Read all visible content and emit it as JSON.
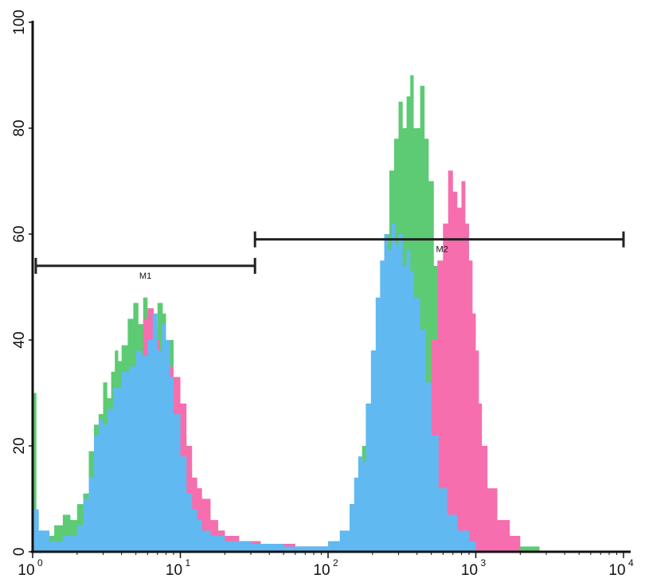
{
  "chart_data": {
    "type": "area",
    "title": "",
    "xlabel": "",
    "ylabel": "",
    "xscale": "log",
    "xlim": [
      1,
      10000
    ],
    "ylim": [
      0,
      100
    ],
    "grid": false,
    "x_ticks": [
      {
        "base": "10",
        "exp": "0"
      },
      {
        "base": "10",
        "exp": "1"
      },
      {
        "base": "10",
        "exp": "2"
      },
      {
        "base": "10",
        "exp": "3"
      },
      {
        "base": "10",
        "exp": "4"
      }
    ],
    "y_ticks": [
      "0",
      "20",
      "40",
      "60",
      "80",
      "100"
    ],
    "markers": [
      {
        "label": "M1",
        "x_start": 1.05,
        "x_end": 32,
        "y": 54
      },
      {
        "label": "M2",
        "x_start": 32,
        "x_end": 10000,
        "y": 59
      }
    ],
    "series": [
      {
        "color": "#5ccb73",
        "points": [
          [
            1,
            30
          ],
          [
            1.05,
            30
          ],
          [
            1.06,
            4
          ],
          [
            1.2,
            3
          ],
          [
            1.4,
            5
          ],
          [
            1.6,
            7
          ],
          [
            1.8,
            6
          ],
          [
            2,
            9
          ],
          [
            2.2,
            11
          ],
          [
            2.4,
            19
          ],
          [
            2.6,
            24
          ],
          [
            2.8,
            26
          ],
          [
            3,
            32
          ],
          [
            3.2,
            29
          ],
          [
            3.4,
            34
          ],
          [
            3.6,
            38
          ],
          [
            3.8,
            36
          ],
          [
            4,
            39
          ],
          [
            4.4,
            44
          ],
          [
            4.8,
            47
          ],
          [
            5.2,
            43
          ],
          [
            5.6,
            48
          ],
          [
            6,
            45
          ],
          [
            6.6,
            42
          ],
          [
            7,
            47
          ],
          [
            7.6,
            45
          ],
          [
            8,
            40
          ],
          [
            9,
            33
          ],
          [
            10,
            22
          ],
          [
            11,
            16
          ],
          [
            12,
            12
          ],
          [
            14,
            8
          ],
          [
            16,
            5
          ],
          [
            18,
            4
          ],
          [
            20,
            3
          ],
          [
            25,
            2
          ],
          [
            35,
            1.5
          ],
          [
            60,
            1
          ],
          [
            90,
            1
          ],
          [
            110,
            2
          ],
          [
            140,
            9
          ],
          [
            170,
            20
          ],
          [
            200,
            38
          ],
          [
            220,
            47
          ],
          [
            240,
            60
          ],
          [
            260,
            72
          ],
          [
            280,
            78
          ],
          [
            300,
            85
          ],
          [
            320,
            80
          ],
          [
            340,
            86
          ],
          [
            360,
            90
          ],
          [
            380,
            80
          ],
          [
            420,
            88
          ],
          [
            450,
            78
          ],
          [
            480,
            70
          ],
          [
            520,
            54
          ],
          [
            560,
            40
          ],
          [
            620,
            28
          ],
          [
            700,
            14
          ],
          [
            800,
            8
          ],
          [
            900,
            5
          ],
          [
            1100,
            3
          ],
          [
            1500,
            2
          ],
          [
            2000,
            1
          ],
          [
            2700,
            1
          ],
          [
            2700,
            0
          ]
        ]
      },
      {
        "color": "#f66eae",
        "points": [
          [
            1,
            1
          ],
          [
            1.5,
            1
          ],
          [
            2,
            2
          ],
          [
            3,
            4
          ],
          [
            4,
            5
          ],
          [
            5,
            30
          ],
          [
            5.6,
            44
          ],
          [
            6,
            46
          ],
          [
            6.6,
            40
          ],
          [
            7.2,
            38
          ],
          [
            8,
            35
          ],
          [
            9,
            33
          ],
          [
            10,
            28
          ],
          [
            11,
            20
          ],
          [
            12,
            14
          ],
          [
            13,
            12
          ],
          [
            14,
            10
          ],
          [
            16,
            6
          ],
          [
            18,
            4
          ],
          [
            20,
            3
          ],
          [
            25,
            2
          ],
          [
            35,
            1.5
          ],
          [
            60,
            1
          ],
          [
            100,
            1
          ],
          [
            200,
            2
          ],
          [
            300,
            5
          ],
          [
            400,
            15
          ],
          [
            450,
            30
          ],
          [
            500,
            40
          ],
          [
            550,
            55
          ],
          [
            600,
            62
          ],
          [
            650,
            72
          ],
          [
            700,
            68
          ],
          [
            750,
            65
          ],
          [
            800,
            70
          ],
          [
            850,
            62
          ],
          [
            900,
            55
          ],
          [
            950,
            45
          ],
          [
            1000,
            38
          ],
          [
            1050,
            28
          ],
          [
            1100,
            20
          ],
          [
            1200,
            12
          ],
          [
            1400,
            6
          ],
          [
            1700,
            3
          ],
          [
            2000,
            1
          ],
          [
            2000,
            0
          ]
        ]
      },
      {
        "color": "#61b9f1",
        "points": [
          [
            1,
            8
          ],
          [
            1.04,
            8
          ],
          [
            1.1,
            4
          ],
          [
            1.3,
            2
          ],
          [
            1.6,
            3
          ],
          [
            2,
            5
          ],
          [
            2.2,
            10
          ],
          [
            2.4,
            14
          ],
          [
            2.6,
            22
          ],
          [
            2.8,
            25
          ],
          [
            3,
            24
          ],
          [
            3.2,
            27
          ],
          [
            3.5,
            31
          ],
          [
            4,
            34
          ],
          [
            4.5,
            35
          ],
          [
            5,
            38
          ],
          [
            5.5,
            37
          ],
          [
            6,
            40
          ],
          [
            6.5,
            45
          ],
          [
            7,
            38
          ],
          [
            7.5,
            43
          ],
          [
            8,
            40
          ],
          [
            8.5,
            33
          ],
          [
            9,
            26
          ],
          [
            10,
            18
          ],
          [
            11,
            11
          ],
          [
            12,
            8
          ],
          [
            13,
            6
          ],
          [
            14,
            4
          ],
          [
            16,
            3
          ],
          [
            20,
            2
          ],
          [
            30,
            1.5
          ],
          [
            50,
            1
          ],
          [
            80,
            1
          ],
          [
            100,
            2
          ],
          [
            120,
            4
          ],
          [
            140,
            9
          ],
          [
            150,
            14
          ],
          [
            160,
            18
          ],
          [
            170,
            17
          ],
          [
            180,
            28
          ],
          [
            195,
            38
          ],
          [
            210,
            48
          ],
          [
            225,
            55
          ],
          [
            240,
            60
          ],
          [
            255,
            57
          ],
          [
            270,
            62
          ],
          [
            285,
            58
          ],
          [
            300,
            60
          ],
          [
            320,
            54
          ],
          [
            340,
            57
          ],
          [
            360,
            53
          ],
          [
            380,
            48
          ],
          [
            420,
            42
          ],
          [
            460,
            32
          ],
          [
            500,
            22
          ],
          [
            560,
            12
          ],
          [
            640,
            7
          ],
          [
            750,
            4
          ],
          [
            900,
            2
          ],
          [
            1000,
            1
          ],
          [
            1000,
            0
          ]
        ]
      }
    ]
  }
}
